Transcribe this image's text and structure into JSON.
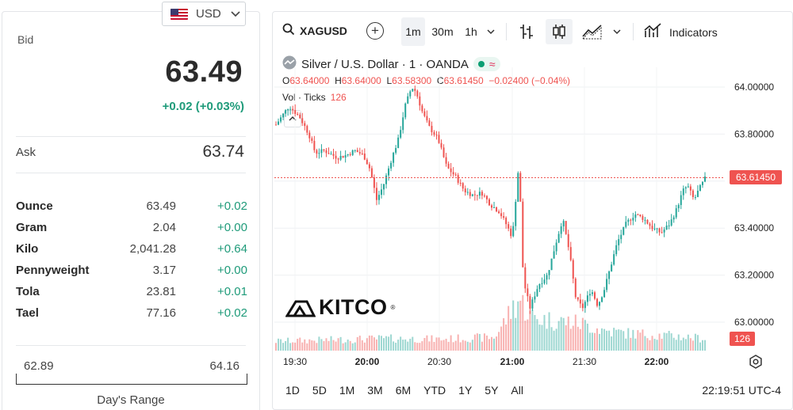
{
  "currency": {
    "code": "USD"
  },
  "quote": {
    "bid_label": "Bid",
    "bid": "63.49",
    "bid_change": "+0.02 (+0.03%)",
    "ask_label": "Ask",
    "ask": "63.74"
  },
  "units": [
    {
      "name": "Ounce",
      "value": "63.49",
      "change": "+0.02"
    },
    {
      "name": "Gram",
      "value": "2.04",
      "change": "+0.00"
    },
    {
      "name": "Kilo",
      "value": "2,041.28",
      "change": "+0.64"
    },
    {
      "name": "Pennyweight",
      "value": "3.17",
      "change": "+0.00"
    },
    {
      "name": "Tola",
      "value": "23.81",
      "change": "+0.01"
    },
    {
      "name": "Tael",
      "value": "77.16",
      "change": "+0.02"
    }
  ],
  "days_range": {
    "low": "62.89",
    "high": "64.16",
    "label": "Day's Range"
  },
  "toolbar": {
    "symbol": "XAGUSD",
    "intervals": [
      "1m",
      "30m",
      "1h"
    ],
    "active_interval": "1m",
    "indicators_label": "Indicators",
    "icons": [
      "search-icon",
      "add-symbol-icon",
      "chevron-down-icon",
      "bar-chart-icon",
      "candlestick-icon",
      "area-chart-icon",
      "indicators-icon"
    ]
  },
  "legend": {
    "title": "Silver / U.S. Dollar · 1 · OANDA",
    "open_label": "O",
    "open": "63.64000",
    "high_label": "H",
    "high": "63.64000",
    "low_label": "L",
    "low": "63.58300",
    "close_label": "C",
    "close": "63.61450",
    "change": "−0.02400 (−0.04%)",
    "vol_label": "Vol · Ticks",
    "vol_value": "126"
  },
  "colors": {
    "up": "#26a69a",
    "down": "#ef5350",
    "accent_green": "#1f9b7a"
  },
  "chart_data": {
    "type": "candlestick",
    "price_axis_ticks": [
      "64.00000",
      "63.80000",
      "63.60000",
      "63.40000",
      "63.20000",
      "63.00000"
    ],
    "y_range": [
      62.95,
      64.05
    ],
    "time_axis_ticks": [
      "19:30",
      "20:00",
      "20:30",
      "21:00",
      "21:30",
      "22:00"
    ],
    "current_price": "63.61450",
    "current_volume": "126",
    "series_path": [
      [
        0,
        63.84
      ],
      [
        6,
        63.92
      ],
      [
        11,
        63.87
      ],
      [
        15,
        63.8
      ],
      [
        18,
        63.72
      ],
      [
        22,
        63.73
      ],
      [
        28,
        63.7
      ],
      [
        32,
        63.71
      ],
      [
        36,
        63.73
      ],
      [
        40,
        63.71
      ],
      [
        43,
        63.65
      ],
      [
        46,
        63.52
      ],
      [
        49,
        63.58
      ],
      [
        53,
        63.7
      ],
      [
        56,
        63.78
      ],
      [
        59,
        63.92
      ],
      [
        62,
        64.0
      ],
      [
        64,
        63.98
      ],
      [
        67,
        63.89
      ],
      [
        70,
        63.83
      ],
      [
        74,
        63.78
      ],
      [
        78,
        63.66
      ],
      [
        82,
        63.62
      ],
      [
        86,
        63.56
      ],
      [
        90,
        63.54
      ],
      [
        94,
        63.55
      ],
      [
        98,
        63.5
      ],
      [
        102,
        63.47
      ],
      [
        105,
        63.42
      ],
      [
        108,
        63.36
      ],
      [
        111,
        63.68
      ],
      [
        113,
        63.18
      ],
      [
        116,
        63.06
      ],
      [
        120,
        63.16
      ],
      [
        124,
        63.2
      ],
      [
        128,
        63.34
      ],
      [
        131,
        63.44
      ],
      [
        134,
        63.3
      ],
      [
        137,
        63.1
      ],
      [
        140,
        63.06
      ],
      [
        144,
        63.14
      ],
      [
        147,
        63.07
      ],
      [
        150,
        63.14
      ],
      [
        153,
        63.24
      ],
      [
        156,
        63.34
      ],
      [
        160,
        63.42
      ],
      [
        164,
        63.46
      ],
      [
        168,
        63.44
      ],
      [
        172,
        63.4
      ],
      [
        176,
        63.38
      ],
      [
        180,
        63.42
      ],
      [
        183,
        63.48
      ],
      [
        186,
        63.56
      ],
      [
        188,
        63.58
      ],
      [
        191,
        63.52
      ],
      [
        193,
        63.56
      ],
      [
        196,
        63.61
      ]
    ],
    "x_domain": [
      0,
      196
    ],
    "volume_path": [
      [
        0,
        14
      ],
      [
        25,
        16
      ],
      [
        50,
        18
      ],
      [
        75,
        17
      ],
      [
        100,
        20
      ],
      [
        111,
        78
      ],
      [
        116,
        52
      ],
      [
        122,
        46
      ],
      [
        130,
        44
      ],
      [
        140,
        40
      ],
      [
        150,
        30
      ],
      [
        160,
        26
      ],
      [
        170,
        24
      ],
      [
        180,
        22
      ],
      [
        196,
        18
      ]
    ]
  },
  "time_ranges": [
    "1D",
    "5D",
    "1M",
    "3M",
    "6M",
    "YTD",
    "1Y",
    "5Y",
    "All"
  ],
  "clock": "22:19:51 UTC-4",
  "watermark": "KITCO"
}
